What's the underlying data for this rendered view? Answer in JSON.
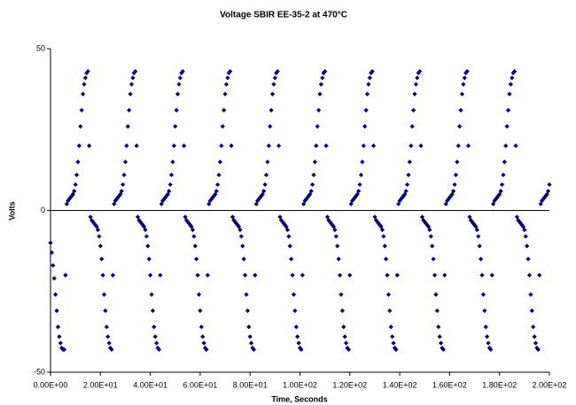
{
  "chart_data": {
    "type": "scatter",
    "title": "Voltage SBIR EE-35-2 at 470°C",
    "x_label": "Time, Seconds",
    "y_label": "Volts",
    "xlim": [
      0,
      200
    ],
    "ylim": [
      -50,
      50
    ],
    "xticks": [
      {
        "value": 0,
        "label": "0.00E+00"
      },
      {
        "value": 20,
        "label": "2.00E+01"
      },
      {
        "value": 40,
        "label": "4.00E+01"
      },
      {
        "value": 60,
        "label": "6.00E+01"
      },
      {
        "value": 80,
        "label": "8.00E+01"
      },
      {
        "value": 100,
        "label": "1.00E+02"
      },
      {
        "value": 120,
        "label": "1.20E+02"
      },
      {
        "value": 140,
        "label": "1.40E+02"
      },
      {
        "value": 160,
        "label": "1.60E+02"
      },
      {
        "value": 180,
        "label": "1.80E+02"
      },
      {
        "value": 200,
        "label": "2.00E+02"
      }
    ],
    "yticks": [
      -50,
      0,
      50
    ],
    "x": [
      0,
      0.5,
      1,
      1.5,
      2,
      2.5,
      3,
      3.5,
      4,
      4.5,
      5,
      5.5,
      6,
      6.5,
      7,
      7.5,
      8,
      8.5,
      9,
      9.5,
      10,
      10.5,
      11,
      11.5,
      12,
      12.5,
      13,
      13.5,
      14,
      14.5,
      15,
      15.5,
      16,
      16.5,
      17,
      17.5,
      18,
      18.5,
      19,
      19.5,
      20,
      20.5,
      21,
      21.5,
      22,
      22.5,
      23,
      23.5,
      24,
      24.5,
      25,
      25.5,
      26,
      26.5,
      27,
      27.5,
      28,
      28.5,
      29,
      29.5,
      30,
      30.5,
      31,
      31.5,
      32,
      32.5,
      33,
      33.5,
      34,
      34.5,
      35,
      35.5,
      36,
      36.5,
      37,
      37.5,
      38,
      38.5,
      39,
      39.5,
      40,
      40.5,
      41,
      41.5,
      42,
      42.5,
      43,
      43.5,
      44,
      44.5,
      45,
      45.5,
      46,
      46.5,
      47,
      47.5,
      48,
      48.5,
      49,
      49.5,
      50,
      50.5,
      51,
      51.5,
      52,
      52.5,
      53,
      53.5,
      54,
      54.5,
      55,
      55.5,
      56,
      56.5,
      57,
      57.5,
      58,
      58.5,
      59,
      59.5,
      60,
      60.5,
      61,
      61.5,
      62,
      62.5,
      63,
      63.5,
      64,
      64.5,
      65,
      65.5,
      66,
      66.5,
      67,
      67.5,
      68,
      68.5,
      69,
      69.5,
      70,
      70.5,
      71,
      71.5,
      72,
      72.5,
      73,
      73.5,
      74,
      74.5,
      75,
      75.5,
      76,
      76.5,
      77,
      77.5,
      78,
      78.5,
      79,
      79.5,
      80,
      80.5,
      81,
      81.5,
      82,
      82.5,
      83,
      83.5,
      84,
      84.5,
      85,
      85.5,
      86,
      86.5,
      87,
      87.5,
      88,
      88.5,
      89,
      89.5,
      90,
      90.5,
      91,
      91.5,
      92,
      92.5,
      93,
      93.5,
      94,
      94.5,
      95,
      95.5,
      96,
      96.5,
      97,
      97.5,
      98,
      98.5,
      99,
      99.5,
      100,
      100.5,
      101,
      101.5,
      102,
      102.5,
      103,
      103.5,
      104,
      104.5,
      105,
      105.5,
      106,
      106.5,
      107,
      107.5,
      108,
      108.5,
      109,
      109.5,
      110,
      110.5,
      111,
      111.5,
      112,
      112.5,
      113,
      113.5,
      114,
      114.5,
      115,
      115.5,
      116,
      116.5,
      117,
      117.5,
      118,
      118.5,
      119,
      119.5,
      120,
      120.5,
      121,
      121.5,
      122,
      122.5,
      123,
      123.5,
      124,
      124.5,
      125,
      125.5,
      126,
      126.5,
      127,
      127.5,
      128,
      128.5,
      129,
      129.5,
      130,
      130.5,
      131,
      131.5,
      132,
      132.5,
      133,
      133.5,
      134,
      134.5,
      135,
      135.5,
      136,
      136.5,
      137,
      137.5,
      138,
      138.5,
      139,
      139.5,
      140,
      140.5,
      141,
      141.5,
      142,
      142.5,
      143,
      143.5,
      144,
      144.5,
      145,
      145.5,
      146,
      146.5,
      147,
      147.5,
      148,
      148.5,
      149,
      149.5,
      150,
      150.5,
      151,
      151.5,
      152,
      152.5,
      153,
      153.5,
      154,
      154.5,
      155,
      155.5,
      156,
      156.5,
      157,
      157.5,
      158,
      158.5,
      159,
      159.5,
      160,
      160.5,
      161,
      161.5,
      162,
      162.5,
      163,
      163.5,
      164,
      164.5,
      165,
      165.5,
      166,
      166.5,
      167,
      167.5,
      168,
      168.5,
      169,
      169.5,
      170,
      170.5,
      171,
      171.5,
      172,
      172.5,
      173,
      173.5,
      174,
      174.5,
      175,
      175.5,
      176,
      176.5,
      177,
      177.5,
      178,
      178.5,
      179,
      179.5,
      180,
      180.5,
      181,
      181.5,
      182,
      182.5,
      183,
      183.5,
      184,
      184.5,
      185,
      185.5,
      186,
      186.5,
      187,
      187.5,
      188,
      188.5,
      189,
      189.5,
      190,
      190.5,
      191,
      191.5,
      192,
      192.5,
      193,
      193.5,
      194,
      194.5,
      195,
      195.5,
      196,
      196.5,
      197,
      197.5,
      198,
      198.5,
      199,
      199.5,
      200
    ],
    "series": [
      {
        "color": "#000080",
        "values": [
          -10,
          -13,
          -17,
          -21,
          -26,
          -31,
          -36,
          -39,
          -41,
          -42.5,
          -43,
          -43,
          -20,
          2,
          3,
          3.5,
          4,
          4.5,
          5,
          6,
          8,
          11,
          15,
          20,
          26,
          31,
          36,
          39,
          41,
          42.5,
          43,
          20,
          -2,
          -3,
          -3.5,
          -4,
          -4.5,
          -5,
          -6,
          -8,
          -11,
          -15,
          -20,
          -26,
          -31,
          -36,
          -39,
          -41,
          -42.5,
          -43,
          -20,
          2,
          3,
          3.5,
          4,
          4.5,
          5,
          6,
          8,
          11,
          15,
          20,
          26,
          31,
          36,
          39,
          41,
          42.5,
          43,
          20,
          -2,
          -3,
          -3.5,
          -4,
          -4.5,
          -5,
          -6,
          -8,
          -11,
          -15,
          -20,
          -26,
          -31,
          -36,
          -39,
          -41,
          -42.5,
          -43,
          -20,
          2,
          3,
          3.5,
          4,
          4.5,
          5,
          6,
          8,
          11,
          15,
          20,
          26,
          31,
          36,
          39,
          41,
          42.5,
          43,
          20,
          -2,
          -3,
          -3.5,
          -4,
          -4.5,
          -5,
          -6,
          -8,
          -11,
          -15,
          -20,
          -26,
          -31,
          -36,
          -39,
          -41,
          -42.5,
          -43,
          -20,
          2,
          3,
          3.5,
          4,
          4.5,
          5,
          6,
          8,
          11,
          15,
          20,
          26,
          31,
          36,
          39,
          41,
          42.5,
          43,
          20,
          -2,
          -3,
          -3.5,
          -4,
          -4.5,
          -5,
          -6,
          -8,
          -11,
          -15,
          -20,
          -26,
          -31,
          -36,
          -39,
          -41,
          -42.5,
          -43,
          -20,
          2,
          3,
          3.5,
          4,
          4.5,
          5,
          6,
          8,
          11,
          15,
          20,
          26,
          31,
          36,
          39,
          41,
          42.5,
          43,
          20,
          -2,
          -3,
          -3.5,
          -4,
          -4.5,
          -5,
          -6,
          -8,
          -11,
          -15,
          -20,
          -26,
          -31,
          -36,
          -39,
          -41,
          -42.5,
          -43,
          -20,
          2,
          3,
          3.5,
          4,
          4.5,
          5,
          6,
          8,
          11,
          15,
          20,
          26,
          31,
          36,
          39,
          41,
          42.5,
          43,
          20,
          -2,
          -3,
          -3.5,
          -4,
          -4.5,
          -5,
          -6,
          -8,
          -11,
          -15,
          -20,
          -26,
          -31,
          -36,
          -39,
          -41,
          -42.5,
          -43,
          -20,
          2,
          3,
          3.5,
          4,
          4.5,
          5,
          6,
          8,
          11,
          15,
          20,
          26,
          31,
          36,
          39,
          41,
          42.5,
          43,
          20,
          -2,
          -3,
          -3.5,
          -4,
          -4.5,
          -5,
          -6,
          -8,
          -11,
          -15,
          -20,
          -26,
          -31,
          -36,
          -39,
          -41,
          -42.5,
          -43,
          -20,
          2,
          3,
          3.5,
          4,
          4.5,
          5,
          6,
          8,
          11,
          15,
          20,
          26,
          31,
          36,
          39,
          41,
          42.5,
          43,
          20,
          -2,
          -3,
          -3.5,
          -4,
          -4.5,
          -5,
          -6,
          -8,
          -11,
          -15,
          -20,
          -26,
          -31,
          -36,
          -39,
          -41,
          -42.5,
          -43,
          -20,
          2,
          3,
          3.5,
          4,
          4.5,
          5,
          6,
          8,
          11,
          15,
          20,
          26,
          31,
          36,
          39,
          41,
          42.5,
          43,
          20,
          -2,
          -3,
          -3.5,
          -4,
          -4.5,
          -5,
          -6,
          -8,
          -11,
          -15,
          -20,
          -26,
          -31,
          -36,
          -39,
          -41,
          -42.5,
          -43,
          -20,
          2,
          3,
          3.5,
          4,
          4.5,
          5,
          6,
          8,
          11,
          15,
          20,
          26,
          31,
          36,
          39,
          41,
          42.5,
          43,
          20,
          -2,
          -3,
          -3.5,
          -4,
          -4.5,
          -5,
          -6,
          -8,
          -11,
          -15,
          -20,
          -26,
          -31,
          -36,
          -39,
          -41,
          -42.5,
          -43,
          -20,
          2,
          3,
          3.5,
          4,
          4.5,
          5,
          6,
          8
        ]
      }
    ]
  }
}
